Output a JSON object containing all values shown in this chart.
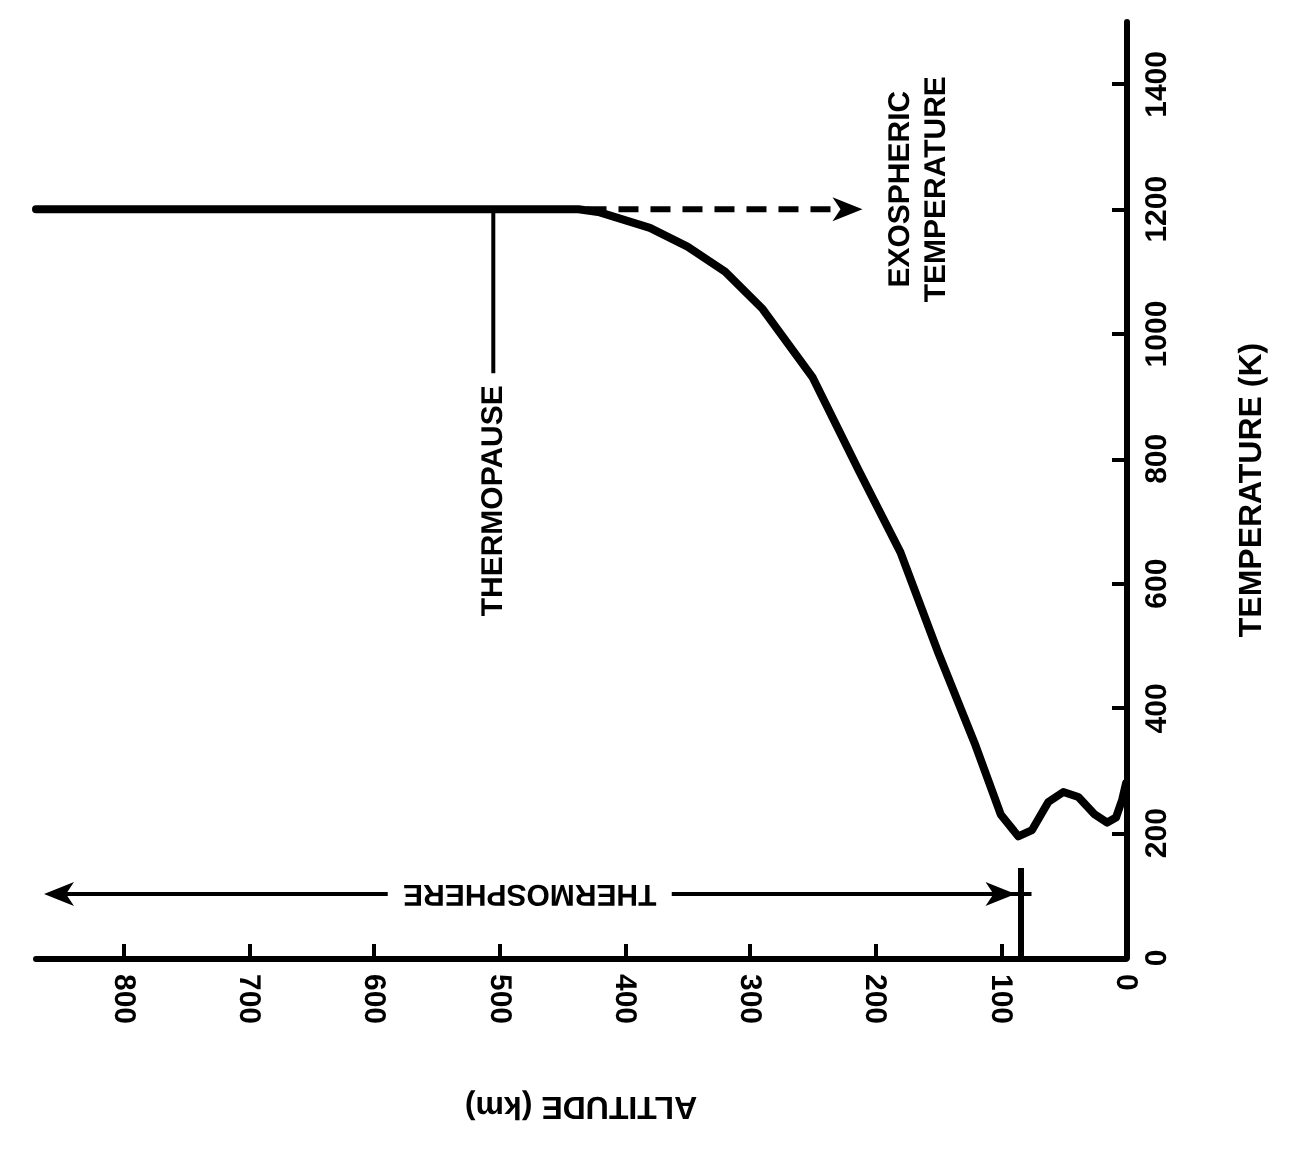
{
  "chart_data": {
    "type": "line",
    "xlabel": "ALTITUDE (km)",
    "ylabel": "TEMPERATURE (K)",
    "xlim": [
      870,
      0
    ],
    "xticks": [
      800,
      700,
      600,
      500,
      400,
      300,
      200,
      100,
      0
    ],
    "ylim": [
      0,
      1500
    ],
    "yticks": [
      0,
      200,
      400,
      600,
      800,
      1000,
      1200,
      1400
    ],
    "grid": false,
    "marker": "none",
    "series": [
      {
        "color": "#000000",
        "x": [
          870,
          437,
          420,
          380,
          350,
          320,
          290,
          250,
          213,
          180,
          150,
          120,
          100,
          86,
          75,
          62,
          50,
          38,
          25,
          15,
          8,
          3,
          0
        ],
        "values": [
          1200,
          1200,
          1195,
          1170,
          1140,
          1100,
          1040,
          930,
          780,
          650,
          490,
          340,
          230,
          195,
          205,
          250,
          266,
          258,
          230,
          217,
          225,
          254,
          280
        ]
      }
    ],
    "annotations": [
      {
        "text": "THERMOPAUSE",
        "x": 505,
        "y": 1200
      },
      "EXOSPHERIC\nTEMPERATURE"
    ],
    "ref_lines": [
      {
        "axis": "x",
        "value": 85,
        "label": "THERMOSPHERE"
      }
    ]
  }
}
